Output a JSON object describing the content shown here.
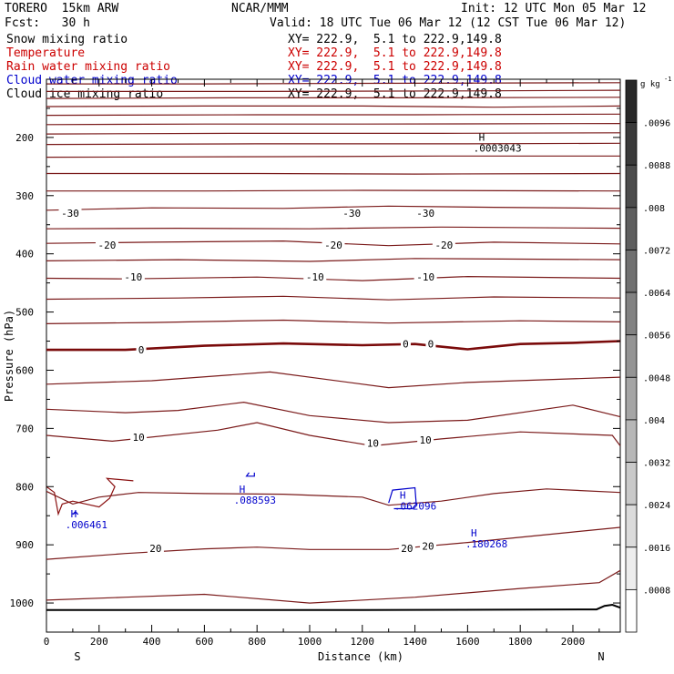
{
  "header": {
    "model": "TORERO  15km ARW",
    "org": "NCAR/MMM",
    "init": "Init: 12 UTC Mon 05 Mar 12",
    "fcst": "Fcst:   30 h",
    "valid": "Valid: 18 UTC Tue 06 Mar 12 (12 CST Tue 06 Mar 12)"
  },
  "legend": [
    {
      "name": "Snow mixing ratio",
      "xy": "XY= 222.9,  5.1 to 222.9,149.8",
      "color": "#000000"
    },
    {
      "name": "Temperature",
      "xy": "XY= 222.9,  5.1 to 222.9,149.8",
      "color": "#cc0000"
    },
    {
      "name": "Rain water mixing ratio",
      "xy": "XY= 222.9,  5.1 to 222.9,149.8",
      "color": "#cc0000"
    },
    {
      "name": "Cloud water mixing ratio",
      "xy": "XY= 222.9,  5.1 to 222.9,149.8",
      "color": "#0000cc"
    },
    {
      "name": "Cloud ice mixing ratio",
      "xy": "XY= 222.9,  5.1 to 222.9,149.8",
      "color": "#000000"
    }
  ],
  "chart_data": {
    "type": "contour",
    "xlabel": "Distance (km)",
    "ylabel": "Pressure (hPa)",
    "xlim": [
      0,
      2180
    ],
    "ylim": [
      1050,
      100
    ],
    "xticks": [
      0,
      200,
      400,
      600,
      800,
      1000,
      1200,
      1400,
      1600,
      1800,
      2000
    ],
    "yticks": [
      200,
      300,
      400,
      500,
      600,
      700,
      800,
      900,
      1000
    ],
    "x_end_labels": {
      "left": "S",
      "right": "N"
    },
    "colorbar": {
      "unit": "g kg",
      "unit_sup": "-1",
      "ticks": [
        ".0096",
        ".0088",
        ".008",
        ".0072",
        ".0064",
        ".0056",
        ".0048",
        ".004",
        ".0032",
        ".0024",
        ".0016",
        ".0008"
      ],
      "tick_values": [
        0.0096,
        0.0088,
        0.008,
        0.0072,
        0.0064,
        0.0056,
        0.0048,
        0.004,
        0.0032,
        0.0024,
        0.0016,
        0.0008
      ],
      "range": [
        0,
        0.0104
      ]
    },
    "temperature_isotherm_labels": [
      {
        "text": "-30",
        "x": 90,
        "p": 330
      },
      {
        "text": "-30",
        "x": 1160,
        "p": 330
      },
      {
        "text": "-30",
        "x": 1440,
        "p": 330
      },
      {
        "text": "-20",
        "x": 230,
        "p": 385
      },
      {
        "text": "-20",
        "x": 1090,
        "p": 385
      },
      {
        "text": "-20",
        "x": 1510,
        "p": 385
      },
      {
        "text": "-10",
        "x": 330,
        "p": 440
      },
      {
        "text": "-10",
        "x": 1020,
        "p": 440
      },
      {
        "text": "-10",
        "x": 1440,
        "p": 440
      },
      {
        "text": "0",
        "x": 360,
        "p": 565
      },
      {
        "text": "0",
        "x": 1365,
        "p": 555
      },
      {
        "text": "0",
        "x": 1460,
        "p": 555
      },
      {
        "text": "10",
        "x": 350,
        "p": 715
      },
      {
        "text": "10",
        "x": 1240,
        "p": 725
      },
      {
        "text": "10",
        "x": 1440,
        "p": 720
      },
      {
        "text": "20",
        "x": 415,
        "p": 906
      },
      {
        "text": "20",
        "x": 1370,
        "p": 906
      },
      {
        "text": "20",
        "x": 1450,
        "p": 902
      }
    ],
    "maxima_labels": [
      {
        "marker": "H",
        "value": ".0003043",
        "x": 1670,
        "p": 215,
        "color": "#000000"
      },
      {
        "marker": "H",
        "value": ".088593",
        "x": 760,
        "p": 820,
        "color": "#0000cc"
      },
      {
        "marker": "H",
        "value": ".062096",
        "x": 1370,
        "p": 830,
        "color": "#0000cc"
      },
      {
        "marker": "H",
        "value": ".006461",
        "x": 120,
        "p": 862,
        "color": "#0000cc"
      },
      {
        "marker": "H",
        "value": ".180268",
        "x": 1640,
        "p": 895,
        "color": "#0000cc"
      }
    ],
    "isobars_thin": [
      [
        [
          0,
          108
        ],
        [
          600,
          108
        ],
        [
          1200,
          107
        ],
        [
          2180,
          106
        ]
      ],
      [
        [
          0,
          121
        ],
        [
          800,
          121
        ],
        [
          1600,
          120
        ],
        [
          2180,
          119
        ]
      ],
      [
        [
          0,
          133
        ],
        [
          700,
          132
        ],
        [
          1400,
          132
        ],
        [
          2180,
          131
        ]
      ],
      [
        [
          0,
          147
        ],
        [
          600,
          146
        ],
        [
          1200,
          146
        ],
        [
          1700,
          148
        ],
        [
          2180,
          146
        ]
      ],
      [
        [
          0,
          162
        ],
        [
          800,
          161
        ],
        [
          1400,
          161
        ],
        [
          2180,
          160
        ]
      ],
      [
        [
          0,
          178
        ],
        [
          600,
          177
        ],
        [
          1200,
          177
        ],
        [
          2180,
          176
        ]
      ],
      [
        [
          0,
          194
        ],
        [
          700,
          193
        ],
        [
          1500,
          193
        ],
        [
          2180,
          192
        ]
      ],
      [
        [
          0,
          212
        ],
        [
          800,
          211
        ],
        [
          1600,
          211
        ],
        [
          2180,
          210
        ]
      ],
      [
        [
          0,
          234
        ],
        [
          900,
          233
        ],
        [
          1500,
          232
        ],
        [
          2180,
          232
        ]
      ],
      [
        [
          0,
          262
        ],
        [
          800,
          262
        ],
        [
          1400,
          263
        ],
        [
          2180,
          262
        ]
      ],
      [
        [
          0,
          292
        ],
        [
          600,
          292
        ],
        [
          1200,
          291
        ],
        [
          2180,
          292
        ]
      ],
      [
        [
          0,
          325
        ],
        [
          400,
          321
        ],
        [
          900,
          322
        ],
        [
          1300,
          318
        ],
        [
          1700,
          320
        ],
        [
          2180,
          322
        ]
      ],
      [
        [
          0,
          357
        ],
        [
          500,
          356
        ],
        [
          1000,
          357
        ],
        [
          1500,
          354
        ],
        [
          2180,
          356
        ]
      ],
      [
        [
          0,
          382
        ],
        [
          400,
          380
        ],
        [
          900,
          378
        ],
        [
          1300,
          386
        ],
        [
          1700,
          380
        ],
        [
          2180,
          383
        ]
      ],
      [
        [
          0,
          412
        ],
        [
          500,
          410
        ],
        [
          1000,
          413
        ],
        [
          1400,
          408
        ],
        [
          2180,
          410
        ]
      ],
      [
        [
          0,
          442
        ],
        [
          300,
          443
        ],
        [
          800,
          440
        ],
        [
          1200,
          446
        ],
        [
          1600,
          439
        ],
        [
          2180,
          442
        ]
      ],
      [
        [
          0,
          478
        ],
        [
          500,
          476
        ],
        [
          900,
          473
        ],
        [
          1300,
          479
        ],
        [
          1700,
          474
        ],
        [
          2180,
          476
        ]
      ],
      [
        [
          0,
          520
        ],
        [
          400,
          518
        ],
        [
          900,
          514
        ],
        [
          1300,
          519
        ],
        [
          1800,
          515
        ],
        [
          2180,
          517
        ]
      ],
      [
        [
          0,
          624
        ],
        [
          400,
          618
        ],
        [
          850,
          603
        ],
        [
          1300,
          630
        ],
        [
          1600,
          621
        ],
        [
          2180,
          612
        ]
      ],
      [
        [
          0,
          667
        ],
        [
          300,
          673
        ],
        [
          500,
          669
        ],
        [
          750,
          655
        ],
        [
          1000,
          678
        ],
        [
          1300,
          690
        ],
        [
          1600,
          686
        ],
        [
          2000,
          660
        ],
        [
          2180,
          680
        ]
      ],
      [
        [
          0,
          712
        ],
        [
          250,
          722
        ],
        [
          650,
          703
        ],
        [
          800,
          690
        ],
        [
          1000,
          712
        ],
        [
          1240,
          730
        ],
        [
          1500,
          718
        ],
        [
          1800,
          706
        ],
        [
          2150,
          712
        ],
        [
          2180,
          730
        ]
      ],
      [
        [
          0,
          808
        ],
        [
          100,
          830
        ],
        [
          200,
          818
        ],
        [
          350,
          810
        ],
        [
          600,
          812
        ],
        [
          900,
          813
        ],
        [
          1200,
          818
        ],
        [
          1300,
          832
        ],
        [
          1500,
          825
        ],
        [
          1700,
          812
        ],
        [
          1900,
          804
        ],
        [
          2180,
          810
        ]
      ],
      [
        [
          0,
          925
        ],
        [
          300,
          915
        ],
        [
          600,
          907
        ],
        [
          800,
          904
        ],
        [
          1000,
          908
        ],
        [
          1300,
          908
        ],
        [
          1600,
          896
        ],
        [
          2000,
          878
        ],
        [
          2180,
          870
        ]
      ],
      [
        [
          0,
          995
        ],
        [
          300,
          990
        ],
        [
          600,
          985
        ],
        [
          1000,
          1000
        ],
        [
          1400,
          990
        ],
        [
          1800,
          975
        ],
        [
          2100,
          965
        ],
        [
          2180,
          944
        ]
      ]
    ],
    "freezing_level": [
      [
        0,
        565
      ],
      [
        300,
        565
      ],
      [
        600,
        558
      ],
      [
        900,
        554
      ],
      [
        1200,
        557
      ],
      [
        1400,
        555
      ],
      [
        1600,
        564
      ],
      [
        1800,
        555
      ],
      [
        2000,
        553
      ],
      [
        2180,
        550
      ]
    ],
    "cloud_water_contours": [
      [
        [
          770,
          776
        ],
        [
          760,
          782
        ],
        [
          790,
          782
        ],
        [
          790,
          776
        ]
      ],
      [
        [
          1300,
          828
        ],
        [
          1315,
          806
        ],
        [
          1400,
          802
        ],
        [
          1405,
          830
        ],
        [
          1390,
          838
        ],
        [
          1320,
          838
        ]
      ],
      [
        [
          100,
          848
        ],
        [
          110,
          843
        ],
        [
          120,
          848
        ]
      ]
    ],
    "rain_water_contours": [
      [
        [
          0,
          800
        ],
        [
          30,
          810
        ],
        [
          45,
          847
        ],
        [
          60,
          830
        ],
        [
          100,
          825
        ],
        [
          200,
          835
        ],
        [
          240,
          820
        ],
        [
          260,
          800
        ],
        [
          230,
          786
        ],
        [
          330,
          790
        ]
      ]
    ],
    "surface": [
      [
        0,
        1012
      ],
      [
        600,
        1012
      ],
      [
        1200,
        1012
      ],
      [
        2090,
        1011
      ],
      [
        2120,
        1005
      ],
      [
        2150,
        1003
      ],
      [
        2180,
        1008
      ]
    ]
  }
}
